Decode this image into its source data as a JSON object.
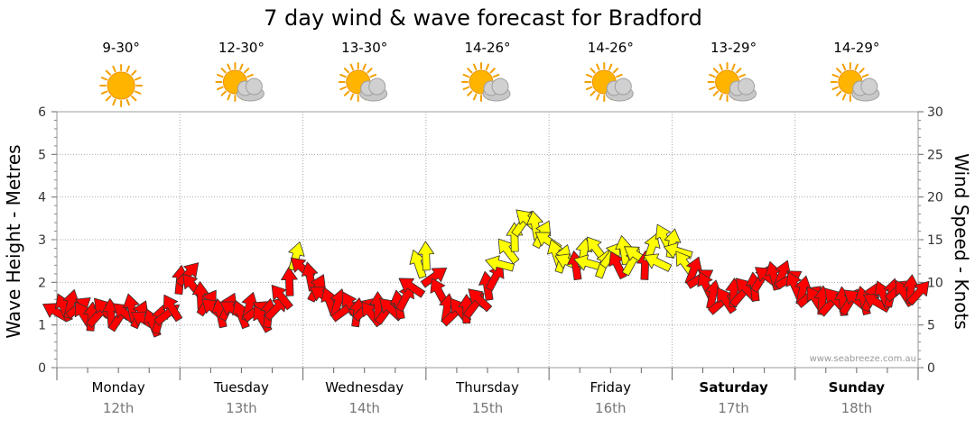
{
  "chart_data": {
    "type": "line",
    "title": "7 day wind & wave forecast for Bradford",
    "ylabel_left": "Wave Height - Metres",
    "ylabel_right": "Wind Speed - Knots",
    "ylim_left": [
      0,
      6
    ],
    "ylim_right": [
      0,
      30
    ],
    "yticks_left": [
      "0",
      "1",
      "2",
      "3",
      "4",
      "5",
      "6"
    ],
    "yticks_right": [
      "0",
      "5",
      "10",
      "15",
      "20",
      "25",
      "30"
    ],
    "credit": "www.seabreeze.com.au",
    "days": [
      {
        "name": "Monday",
        "date": "12th",
        "temp": "9-30°",
        "icon": "sun-icon",
        "bold": false
      },
      {
        "name": "Tuesday",
        "date": "13th",
        "temp": "12-30°",
        "icon": "sun-cloud-icon",
        "bold": false
      },
      {
        "name": "Wednesday",
        "date": "14th",
        "temp": "13-30°",
        "icon": "sun-cloud-icon",
        "bold": false
      },
      {
        "name": "Thursday",
        "date": "15th",
        "temp": "14-26°",
        "icon": "sun-cloud-icon",
        "bold": false
      },
      {
        "name": "Friday",
        "date": "16th",
        "temp": "14-26°",
        "icon": "sun-cloud-icon",
        "bold": false
      },
      {
        "name": "Saturday",
        "date": "17th",
        "temp": "13-29°",
        "icon": "sun-cloud-icon",
        "bold": true
      },
      {
        "name": "Sunday",
        "date": "18th",
        "temp": "14-29°",
        "icon": "sun-cloud-icon",
        "bold": true
      }
    ],
    "series": [
      {
        "name": "Wind speed (knots)",
        "colors": {
          "light": "#ff0000",
          "strong": "#ffff00",
          "outline": "#333333"
        },
        "strong_threshold_knots": 12,
        "points": [
          [
            0.0,
            6.5
          ],
          [
            0.06,
            6.9
          ],
          [
            0.11,
            7.3
          ],
          [
            0.17,
            7.0
          ],
          [
            0.22,
            6.1
          ],
          [
            0.28,
            5.8
          ],
          [
            0.33,
            6.1
          ],
          [
            0.39,
            6.7
          ],
          [
            0.44,
            6.2
          ],
          [
            0.5,
            5.7
          ],
          [
            0.56,
            6.3
          ],
          [
            0.61,
            6.8
          ],
          [
            0.67,
            6.1
          ],
          [
            0.72,
            5.5
          ],
          [
            0.78,
            5.1
          ],
          [
            0.83,
            5.5
          ],
          [
            0.89,
            6.2
          ],
          [
            0.94,
            6.9
          ],
          [
            1.0,
            10.1
          ],
          [
            1.06,
            10.9
          ],
          [
            1.11,
            9.5
          ],
          [
            1.17,
            8.2
          ],
          [
            1.22,
            7.5
          ],
          [
            1.28,
            6.8
          ],
          [
            1.33,
            6.2
          ],
          [
            1.39,
            7.0
          ],
          [
            1.44,
            6.7
          ],
          [
            1.5,
            6.1
          ],
          [
            1.56,
            7.0
          ],
          [
            1.61,
            6.6
          ],
          [
            1.67,
            5.6
          ],
          [
            1.72,
            6.2
          ],
          [
            1.78,
            6.9
          ],
          [
            1.83,
            8.2
          ],
          [
            1.89,
            9.9
          ],
          [
            1.94,
            12.9
          ],
          [
            2.0,
            11.6
          ],
          [
            2.06,
            10.5
          ],
          [
            2.11,
            9.2
          ],
          [
            2.17,
            8.4
          ],
          [
            2.22,
            7.6
          ],
          [
            2.28,
            7.4
          ],
          [
            2.33,
            6.6
          ],
          [
            2.39,
            7.2
          ],
          [
            2.44,
            6.3
          ],
          [
            2.5,
            6.8
          ],
          [
            2.56,
            6.2
          ],
          [
            2.61,
            7.0
          ],
          [
            2.67,
            6.5
          ],
          [
            2.72,
            6.8
          ],
          [
            2.78,
            7.2
          ],
          [
            2.83,
            8.1
          ],
          [
            2.89,
            9.4
          ],
          [
            2.94,
            12.0
          ],
          [
            3.0,
            12.9
          ],
          [
            3.06,
            10.6
          ],
          [
            3.11,
            8.8
          ],
          [
            3.17,
            6.8
          ],
          [
            3.22,
            6.2
          ],
          [
            3.28,
            6.6
          ],
          [
            3.33,
            6.7
          ],
          [
            3.39,
            7.2
          ],
          [
            3.44,
            7.9
          ],
          [
            3.5,
            9.4
          ],
          [
            3.56,
            10.5
          ],
          [
            3.61,
            12.1
          ],
          [
            3.67,
            13.6
          ],
          [
            3.72,
            15.1
          ],
          [
            3.78,
            16.8
          ],
          [
            3.83,
            17.2
          ],
          [
            3.89,
            16.5
          ],
          [
            3.94,
            15.5
          ],
          [
            4.0,
            14.8
          ],
          [
            4.06,
            13.2
          ],
          [
            4.11,
            12.6
          ],
          [
            4.17,
            12.3
          ],
          [
            4.22,
            11.8
          ],
          [
            4.28,
            13.3
          ],
          [
            4.33,
            12.2
          ],
          [
            4.39,
            13.8
          ],
          [
            4.44,
            12.0
          ],
          [
            4.5,
            13.1
          ],
          [
            4.56,
            11.9
          ],
          [
            4.61,
            13.6
          ],
          [
            4.67,
            12.3
          ],
          [
            4.72,
            13.1
          ],
          [
            4.78,
            11.8
          ],
          [
            4.83,
            13.9
          ],
          [
            4.89,
            12.3
          ],
          [
            4.94,
            15.1
          ],
          [
            5.0,
            14.4
          ],
          [
            5.06,
            13.6
          ],
          [
            5.11,
            12.1
          ],
          [
            5.17,
            11.2
          ],
          [
            5.22,
            10.4
          ],
          [
            5.28,
            9.5
          ],
          [
            5.33,
            8.4
          ],
          [
            5.39,
            7.5
          ],
          [
            5.44,
            7.8
          ],
          [
            5.5,
            8.6
          ],
          [
            5.56,
            8.5
          ],
          [
            5.61,
            9.1
          ],
          [
            5.67,
            9.3
          ],
          [
            5.72,
            10.3
          ],
          [
            5.78,
            10.6
          ],
          [
            5.83,
            10.6
          ],
          [
            5.89,
            10.8
          ],
          [
            5.94,
            10.3
          ],
          [
            6.0,
            9.5
          ],
          [
            6.06,
            8.9
          ],
          [
            6.11,
            8.3
          ],
          [
            6.17,
            7.9
          ],
          [
            6.22,
            7.7
          ],
          [
            6.28,
            7.4
          ],
          [
            6.33,
            7.9
          ],
          [
            6.39,
            7.6
          ],
          [
            6.44,
            7.6
          ],
          [
            6.5,
            7.9
          ],
          [
            6.56,
            7.7
          ],
          [
            6.61,
            8.1
          ],
          [
            6.67,
            7.6
          ],
          [
            6.72,
            8.4
          ],
          [
            6.78,
            8.6
          ],
          [
            6.83,
            9.0
          ],
          [
            6.89,
            8.6
          ],
          [
            6.94,
            9.0
          ],
          [
            7.0,
            8.7
          ]
        ]
      }
    ]
  }
}
